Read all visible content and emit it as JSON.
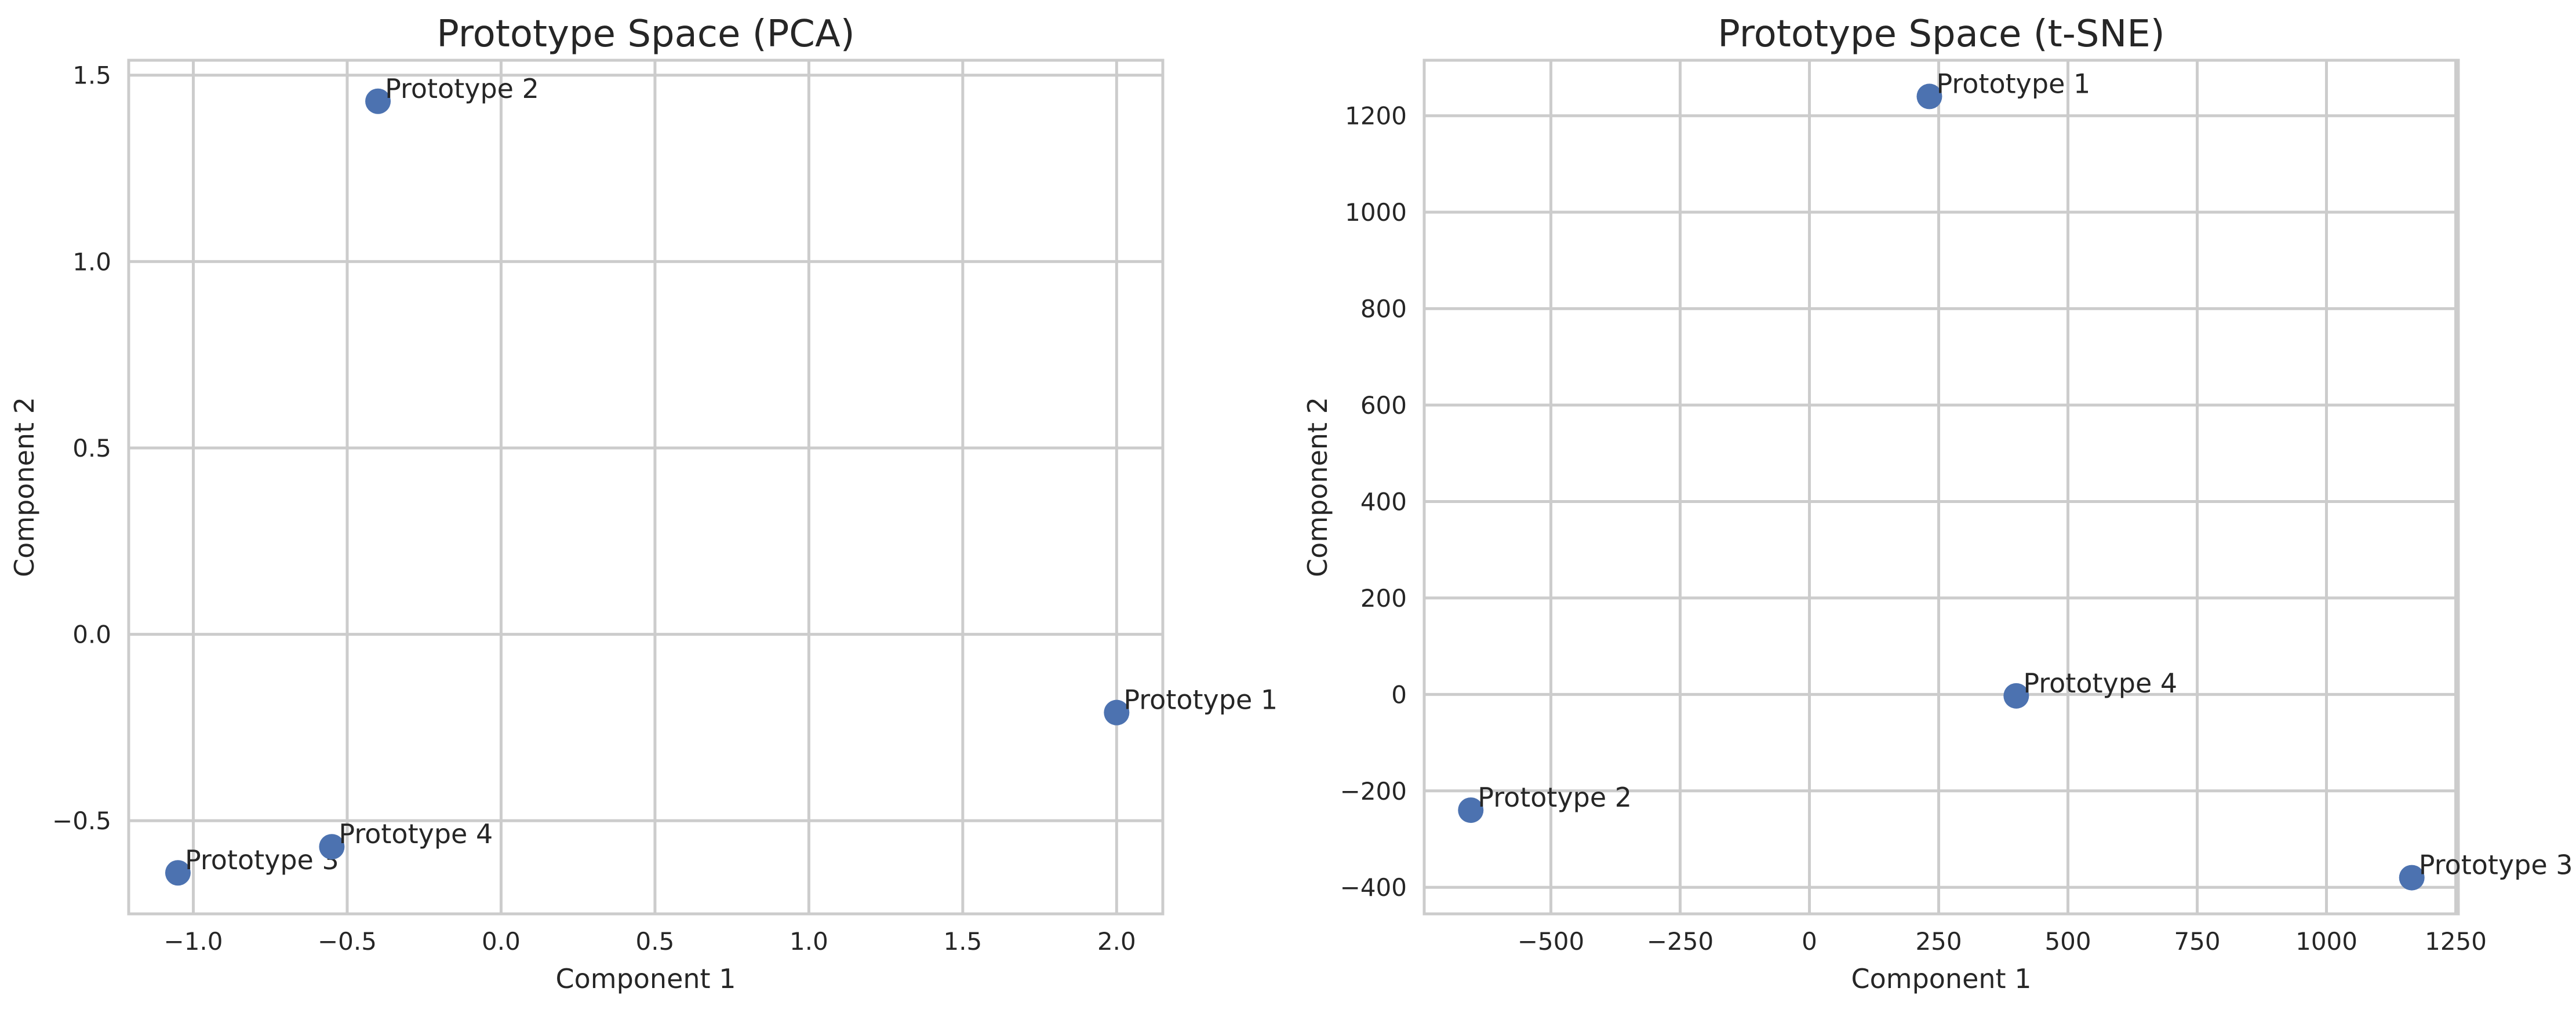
{
  "chart_data": [
    {
      "type": "scatter",
      "title": "Prototype Space (PCA)",
      "xlabel": "Component 1",
      "ylabel": "Component 2",
      "xlim": [
        -1.21,
        2.15
      ],
      "ylim": [
        -0.75,
        1.54
      ],
      "xticks": [
        -1.0,
        -0.5,
        0.0,
        0.5,
        1.0,
        1.5,
        2.0
      ],
      "xtick_labels": [
        "−1.0",
        "−0.5",
        "0.0",
        "0.5",
        "1.0",
        "1.5",
        "2.0"
      ],
      "yticks": [
        -0.5,
        0.0,
        0.5,
        1.0,
        1.5
      ],
      "ytick_labels": [
        "−0.5",
        "0.0",
        "0.5",
        "1.0",
        "1.5"
      ],
      "grid": true,
      "marker_color": "#4c72b0",
      "points": [
        {
          "label": "Prototype 1",
          "x": 2.0,
          "y": -0.21
        },
        {
          "label": "Prototype 2",
          "x": -0.4,
          "y": 1.43
        },
        {
          "label": "Prototype 3",
          "x": -1.05,
          "y": -0.64
        },
        {
          "label": "Prototype 4",
          "x": -0.55,
          "y": -0.57
        }
      ]
    },
    {
      "type": "scatter",
      "title": "Prototype Space (t-SNE)",
      "xlabel": "Component 1",
      "ylabel": "Component 2",
      "xlim": [
        -745,
        1255
      ],
      "ylim": [
        -455,
        1315
      ],
      "xticks": [
        -500,
        -250,
        0,
        250,
        500,
        750,
        1000,
        1250
      ],
      "xtick_labels": [
        "−500",
        "−250",
        "0",
        "250",
        "500",
        "750",
        "1000",
        "1250"
      ],
      "yticks": [
        -400,
        -200,
        0,
        200,
        400,
        600,
        800,
        1000,
        1200
      ],
      "ytick_labels": [
        "−400",
        "−200",
        "0",
        "200",
        "400",
        "600",
        "800",
        "1000",
        "1200"
      ],
      "grid": true,
      "marker_color": "#4c72b0",
      "points": [
        {
          "label": "Prototype 1",
          "x": 232,
          "y": 1240
        },
        {
          "label": "Prototype 2",
          "x": -655,
          "y": -240
        },
        {
          "label": "Prototype 3",
          "x": 1165,
          "y": -380
        },
        {
          "label": "Prototype 4",
          "x": 400,
          "y": -3
        }
      ]
    }
  ]
}
